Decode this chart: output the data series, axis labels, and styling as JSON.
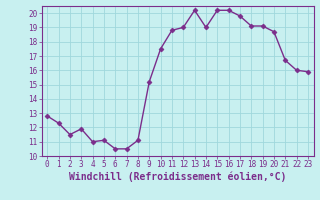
{
  "x": [
    0,
    1,
    2,
    3,
    4,
    5,
    6,
    7,
    8,
    9,
    10,
    11,
    12,
    13,
    14,
    15,
    16,
    17,
    18,
    19,
    20,
    21,
    22,
    23
  ],
  "y": [
    12.8,
    12.3,
    11.5,
    11.9,
    11.0,
    11.1,
    10.5,
    10.5,
    11.1,
    15.2,
    17.5,
    18.8,
    19.0,
    20.2,
    19.0,
    20.2,
    20.2,
    19.8,
    19.1,
    19.1,
    18.7,
    16.7,
    16.0,
    15.9
  ],
  "line_color": "#7B2D8B",
  "marker": "D",
  "marker_size": 2.5,
  "bg_color": "#c8f0f0",
  "grid_color": "#a0d8dc",
  "xlabel": "Windchill (Refroidissement éolien,°C)",
  "xlim": [
    -0.5,
    23.5
  ],
  "ylim": [
    10,
    20.5
  ],
  "yticks": [
    10,
    11,
    12,
    13,
    14,
    15,
    16,
    17,
    18,
    19,
    20
  ],
  "xticks": [
    0,
    1,
    2,
    3,
    4,
    5,
    6,
    7,
    8,
    9,
    10,
    11,
    12,
    13,
    14,
    15,
    16,
    17,
    18,
    19,
    20,
    21,
    22,
    23
  ],
  "tick_fontsize": 5.5,
  "xlabel_fontsize": 7.0,
  "label_color": "#7B2D8B",
  "spine_color": "#7B2D8B",
  "linewidth": 1.0
}
